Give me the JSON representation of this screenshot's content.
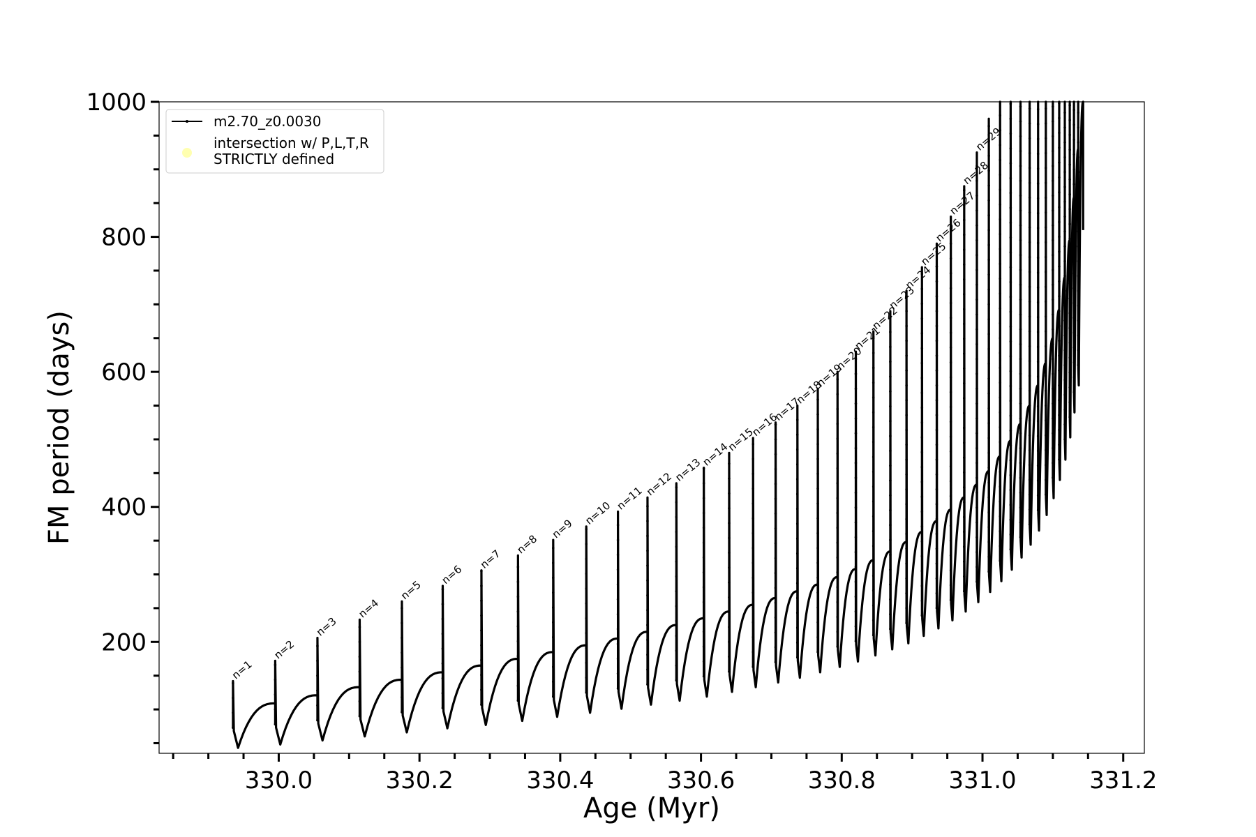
{
  "chart_data": {
    "type": "line",
    "title": "",
    "xlabel": "Age (Myr)",
    "ylabel": "FM period (days)",
    "xlim": [
      329.83,
      331.23
    ],
    "ylim": [
      35,
      1000
    ],
    "xticks": [
      330.0,
      330.2,
      330.4,
      330.6,
      330.8,
      331.0,
      331.2
    ],
    "xtick_labels": [
      "330.0",
      "330.2",
      "330.4",
      "330.6",
      "330.8",
      "331.0",
      "331.2"
    ],
    "yticks": [
      200,
      400,
      600,
      800,
      1000
    ],
    "ytick_labels": [
      "200",
      "400",
      "600",
      "800",
      "1000"
    ],
    "grid": false,
    "legend": {
      "placement": "top-left",
      "entries": [
        {
          "label": "m2.70_z0.0030",
          "marker": "line",
          "color": "#000000"
        },
        {
          "label_lines": [
            "intersection w/ P,L,T,R",
            "STRICTLY defined"
          ],
          "marker": "circle",
          "color": "#ffffb0"
        }
      ]
    },
    "series": [
      {
        "name": "m2.70_z0.0030",
        "color": "#000000",
        "pulses": [
          {
            "n": "n=1",
            "x": 329.935,
            "peak": 142,
            "min": 43,
            "rise_end": 109
          },
          {
            "n": "n=2",
            "x": 329.995,
            "peak": 172,
            "min": 48,
            "rise_end": 121
          },
          {
            "n": "n=3",
            "x": 330.055,
            "peak": 206,
            "min": 54,
            "rise_end": 133
          },
          {
            "n": "n=4",
            "x": 330.115,
            "peak": 233,
            "min": 60,
            "rise_end": 144
          },
          {
            "n": "n=5",
            "x": 330.175,
            "peak": 260,
            "min": 66,
            "rise_end": 155
          },
          {
            "n": "n=6",
            "x": 330.233,
            "peak": 283,
            "min": 72,
            "rise_end": 165
          },
          {
            "n": "n=7",
            "x": 330.288,
            "peak": 306,
            "min": 77,
            "rise_end": 175
          },
          {
            "n": "n=8",
            "x": 330.34,
            "peak": 328,
            "min": 83,
            "rise_end": 185
          },
          {
            "n": "n=9",
            "x": 330.39,
            "peak": 351,
            "min": 89,
            "rise_end": 195
          },
          {
            "n": "n=10",
            "x": 330.437,
            "peak": 371,
            "min": 95,
            "rise_end": 205
          },
          {
            "n": "n=11",
            "x": 330.482,
            "peak": 393,
            "min": 101,
            "rise_end": 215
          },
          {
            "n": "n=12",
            "x": 330.524,
            "peak": 414,
            "min": 107,
            "rise_end": 225
          },
          {
            "n": "n=13",
            "x": 330.565,
            "peak": 435,
            "min": 113,
            "rise_end": 235
          },
          {
            "n": "n=14",
            "x": 330.604,
            "peak": 458,
            "min": 119,
            "rise_end": 245
          },
          {
            "n": "n=15",
            "x": 330.64,
            "peak": 480,
            "min": 126,
            "rise_end": 255
          },
          {
            "n": "n=16",
            "x": 330.674,
            "peak": 502,
            "min": 133,
            "rise_end": 265
          },
          {
            "n": "n=17",
            "x": 330.706,
            "peak": 525,
            "min": 140,
            "rise_end": 275
          },
          {
            "n": "n=18",
            "x": 330.737,
            "peak": 550,
            "min": 147,
            "rise_end": 285
          },
          {
            "n": "n=19",
            "x": 330.766,
            "peak": 575,
            "min": 155,
            "rise_end": 296
          },
          {
            "n": "n=20",
            "x": 330.794,
            "peak": 600,
            "min": 163,
            "rise_end": 308
          },
          {
            "n": "n=21",
            "x": 330.82,
            "peak": 630,
            "min": 171,
            "rise_end": 321
          },
          {
            "n": "n=22",
            "x": 330.845,
            "peak": 660,
            "min": 180,
            "rise_end": 334
          },
          {
            "n": "n=23",
            "x": 330.869,
            "peak": 690,
            "min": 189,
            "rise_end": 348
          },
          {
            "n": "n=24",
            "x": 330.892,
            "peak": 720,
            "min": 198,
            "rise_end": 363
          },
          {
            "n": "n=25",
            "x": 330.914,
            "peak": 755,
            "min": 209,
            "rise_end": 379
          },
          {
            "n": "n=26",
            "x": 330.935,
            "peak": 790,
            "min": 220,
            "rise_end": 396
          },
          {
            "n": "n=27",
            "x": 330.955,
            "peak": 830,
            "min": 232,
            "rise_end": 414
          },
          {
            "n": "n=28",
            "x": 330.974,
            "peak": 875,
            "min": 245,
            "rise_end": 433
          },
          {
            "n": "n=29",
            "x": 330.992,
            "peak": 925,
            "min": 259,
            "rise_end": 453
          },
          {
            "n": "",
            "x": 331.009,
            "peak": 975,
            "min": 274,
            "rise_end": 475
          },
          {
            "n": "",
            "x": 331.025,
            "peak": 1000,
            "min": 290,
            "rise_end": 498
          },
          {
            "n": "",
            "x": 331.04,
            "peak": 1000,
            "min": 307,
            "rise_end": 523
          },
          {
            "n": "",
            "x": 331.054,
            "peak": 1000,
            "min": 325,
            "rise_end": 550
          },
          {
            "n": "",
            "x": 331.067,
            "peak": 1000,
            "min": 344,
            "rise_end": 580
          },
          {
            "n": "",
            "x": 331.079,
            "peak": 1000,
            "min": 365,
            "rise_end": 613
          },
          {
            "n": "",
            "x": 331.09,
            "peak": 1000,
            "min": 388,
            "rise_end": 650
          },
          {
            "n": "",
            "x": 331.1,
            "peak": 1000,
            "min": 413,
            "rise_end": 692
          },
          {
            "n": "",
            "x": 331.109,
            "peak": 1000,
            "min": 440,
            "rise_end": 740
          },
          {
            "n": "",
            "x": 331.117,
            "peak": 1000,
            "min": 470,
            "rise_end": 795
          },
          {
            "n": "",
            "x": 331.124,
            "peak": 1000,
            "min": 503,
            "rise_end": 858
          },
          {
            "n": "",
            "x": 331.13,
            "peak": 1000,
            "min": 540,
            "rise_end": 930
          },
          {
            "n": "",
            "x": 331.136,
            "peak": 1000,
            "min": 580,
            "rise_end": 1000
          }
        ],
        "end": {
          "x": 331.143,
          "y": 810
        }
      }
    ]
  }
}
